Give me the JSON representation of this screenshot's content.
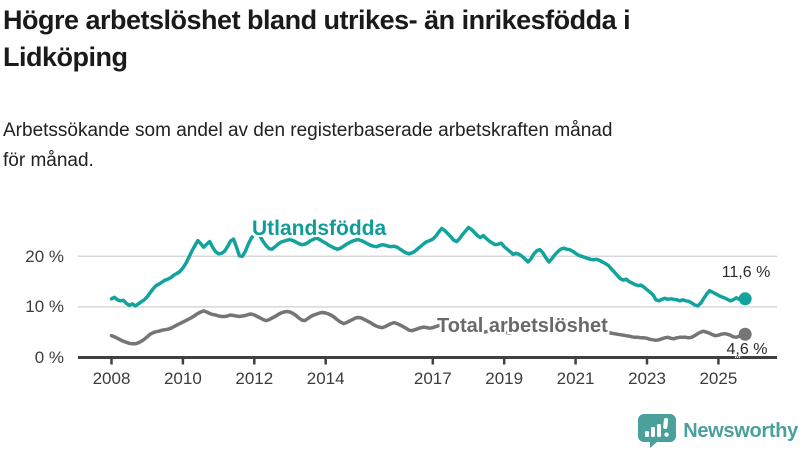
{
  "header": {
    "title_line1": "Högre arbetslöshet bland utrikes- än inrikesfödda i",
    "title_line2": "Lidköping",
    "subtitle_line1": "Arbetssökande som andel av den registerbaserade arbetskraften månad",
    "subtitle_line2": "för månad."
  },
  "chart_data": {
    "type": "line",
    "title": "Högre arbetslöshet bland utrikes- än inrikesfödda i Lidköping",
    "subtitle": "Arbetssökande som andel av den registerbaserade arbetskraften månad för månad.",
    "unit": "%",
    "grid": "horizontal-only",
    "legend": "inline-labels-on-lines",
    "x_range": [
      2008,
      2025.75
    ],
    "ylim": [
      0,
      26
    ],
    "x_axis": {
      "ticks": [
        {
          "year": 2008,
          "label": "2008"
        },
        {
          "year": 2010,
          "label": "2010"
        },
        {
          "year": 2012,
          "label": "2012"
        },
        {
          "year": 2014,
          "label": "2014"
        },
        {
          "year": 2017,
          "label": "2017"
        },
        {
          "year": 2019,
          "label": "2019"
        },
        {
          "year": 2021,
          "label": "2021"
        },
        {
          "year": 2023,
          "label": "2023"
        },
        {
          "year": 2025,
          "label": "2025"
        }
      ]
    },
    "y_axis": {
      "ticks": [
        {
          "value": 0,
          "label": "0 %"
        },
        {
          "value": 10,
          "label": "10 %"
        },
        {
          "value": 20,
          "label": "20 %"
        }
      ]
    },
    "series": [
      {
        "name": "Utlandsfödda",
        "color": "#12a39d",
        "end_label": "11,6 %",
        "end_value": 11.6,
        "start_year": 2008,
        "points_per_year": 12,
        "values": [
          11.6,
          11.9,
          11.4,
          11.2,
          11.3,
          10.7,
          10.3,
          10.6,
          10.2,
          10.6,
          11.0,
          11.4,
          12.0,
          12.8,
          13.6,
          14.2,
          14.5,
          14.9,
          15.3,
          15.5,
          15.8,
          16.3,
          16.6,
          17.0,
          17.7,
          18.6,
          19.8,
          21.0,
          22.1,
          23.1,
          22.5,
          21.8,
          22.4,
          22.9,
          21.8,
          20.9,
          20.5,
          20.6,
          21.0,
          21.9,
          23.0,
          23.4,
          21.8,
          20.1,
          20.0,
          21.0,
          22.4,
          23.6,
          24.3,
          24.8,
          23.9,
          22.9,
          22.1,
          21.5,
          21.4,
          21.9,
          22.4,
          22.8,
          23.0,
          23.2,
          23.3,
          23.1,
          22.8,
          22.5,
          22.3,
          22.4,
          22.7,
          23.1,
          23.4,
          23.6,
          23.3,
          22.9,
          22.6,
          22.2,
          21.9,
          21.6,
          21.4,
          21.6,
          22.0,
          22.4,
          22.7,
          23.0,
          23.2,
          23.3,
          23.1,
          22.8,
          22.5,
          22.2,
          22.0,
          21.9,
          22.1,
          22.3,
          22.2,
          22.0,
          21.9,
          22.0,
          21.8,
          21.4,
          21.0,
          20.7,
          20.5,
          20.7,
          21.0,
          21.5,
          22.0,
          22.5,
          22.9,
          23.1,
          23.4,
          24.0,
          24.8,
          25.5,
          25.1,
          24.5,
          23.9,
          23.2,
          22.9,
          23.5,
          24.3,
          25.0,
          25.7,
          25.3,
          24.7,
          24.1,
          23.7,
          24.1,
          23.5,
          23.0,
          22.6,
          22.3,
          22.4,
          22.6,
          21.9,
          21.4,
          20.9,
          20.4,
          20.6,
          20.4,
          20.0,
          19.5,
          18.9,
          19.5,
          20.5,
          21.1,
          21.3,
          20.7,
          19.7,
          18.9,
          19.5,
          20.3,
          20.9,
          21.4,
          21.6,
          21.4,
          21.3,
          21.0,
          20.6,
          20.2,
          20.0,
          19.8,
          19.6,
          19.4,
          19.3,
          19.4,
          19.2,
          18.9,
          18.6,
          18.2,
          17.5,
          16.9,
          16.2,
          15.6,
          15.3,
          15.5,
          15.0,
          14.7,
          14.4,
          14.2,
          14.3,
          13.9,
          13.4,
          12.9,
          12.4,
          11.4,
          11.2,
          11.5,
          11.7,
          11.5,
          11.6,
          11.5,
          11.4,
          11.2,
          11.4,
          11.2,
          11.1,
          10.8,
          10.4,
          10.2,
          10.7,
          11.6,
          12.5,
          13.2,
          12.9,
          12.6,
          12.3,
          12.0,
          11.8,
          11.5,
          11.2,
          11.4,
          11.8,
          11.5,
          11.4,
          11.6
        ]
      },
      {
        "name": "Total arbetslöshet",
        "color": "#757575",
        "end_label": "4,6 %",
        "end_value": 4.6,
        "start_year": 2008,
        "points_per_year": 12,
        "values": [
          4.3,
          4.1,
          3.8,
          3.5,
          3.2,
          3.0,
          2.8,
          2.7,
          2.7,
          2.9,
          3.2,
          3.6,
          4.1,
          4.6,
          4.9,
          5.1,
          5.2,
          5.4,
          5.5,
          5.6,
          5.8,
          6.1,
          6.4,
          6.7,
          7.0,
          7.3,
          7.6,
          7.9,
          8.3,
          8.7,
          9.0,
          9.2,
          9.0,
          8.7,
          8.5,
          8.4,
          8.2,
          8.1,
          8.1,
          8.2,
          8.4,
          8.3,
          8.2,
          8.1,
          8.2,
          8.3,
          8.5,
          8.6,
          8.4,
          8.1,
          7.8,
          7.5,
          7.3,
          7.5,
          7.8,
          8.1,
          8.5,
          8.8,
          9.0,
          9.1,
          9.0,
          8.7,
          8.3,
          7.8,
          7.4,
          7.3,
          7.7,
          8.1,
          8.4,
          8.6,
          8.8,
          8.9,
          8.8,
          8.6,
          8.3,
          7.9,
          7.4,
          7.0,
          6.7,
          6.9,
          7.2,
          7.5,
          7.8,
          7.9,
          7.8,
          7.5,
          7.2,
          6.9,
          6.5,
          6.2,
          6.0,
          5.9,
          6.1,
          6.4,
          6.7,
          6.9,
          6.7,
          6.4,
          6.1,
          5.8,
          5.4,
          5.3,
          5.5,
          5.7,
          5.9,
          6.0,
          5.9,
          5.8,
          5.9,
          6.1,
          6.3,
          6.4,
          6.3,
          6.1,
          6.0,
          5.9,
          5.8,
          5.7,
          5.6,
          5.5,
          5.4,
          5.3,
          5.2,
          5.1,
          5.0,
          5.0,
          5.1,
          5.2,
          5.3,
          5.2,
          5.1,
          5.0,
          5.0,
          4.9,
          4.9,
          5.0,
          5.1,
          5.2,
          5.3,
          5.4,
          5.5,
          5.6,
          5.7,
          5.8,
          5.9,
          6.1,
          6.5,
          7.0,
          7.3,
          7.5,
          7.6,
          7.5,
          7.3,
          7.1,
          6.9,
          6.7,
          6.5,
          6.3,
          6.1,
          5.9,
          5.7,
          5.6,
          5.5,
          5.4,
          5.3,
          5.2,
          5.1,
          5.0,
          4.8,
          4.7,
          4.6,
          4.5,
          4.4,
          4.3,
          4.2,
          4.1,
          4.0,
          4.0,
          3.9,
          3.9,
          3.8,
          3.6,
          3.5,
          3.4,
          3.5,
          3.7,
          3.9,
          4.0,
          3.8,
          3.7,
          3.9,
          4.0,
          4.0,
          4.0,
          3.9,
          4.0,
          4.3,
          4.7,
          5.0,
          5.2,
          5.0,
          4.8,
          4.5,
          4.3,
          4.4,
          4.6,
          4.7,
          4.6,
          4.4,
          4.1,
          4.0,
          4.2,
          4.5,
          4.6
        ]
      }
    ],
    "colors": {
      "grid": "#d8d8d8",
      "axis": "#404040",
      "tick_text": "#3c3c3c"
    }
  },
  "branding": {
    "logo_text": "Newsworthy",
    "logo_color": "#4aa09a"
  }
}
